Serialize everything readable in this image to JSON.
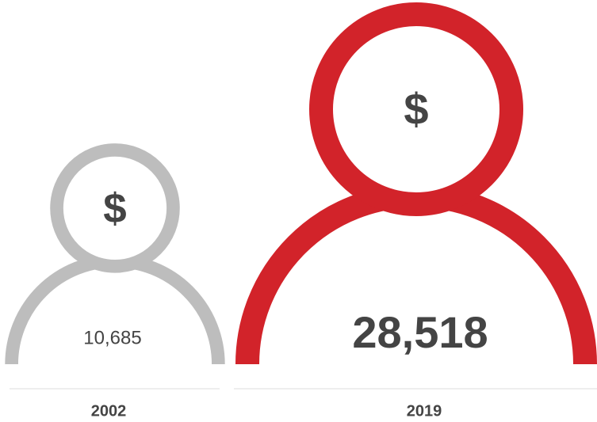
{
  "chart_data": {
    "type": "pictogram",
    "categories": [
      "2002",
      "2019"
    ],
    "values": [
      10685,
      28518
    ],
    "value_labels": [
      "10,685",
      "28,518"
    ],
    "colors": [
      "#bdbdbd",
      "#d2232a"
    ],
    "icon_symbol": "$"
  }
}
